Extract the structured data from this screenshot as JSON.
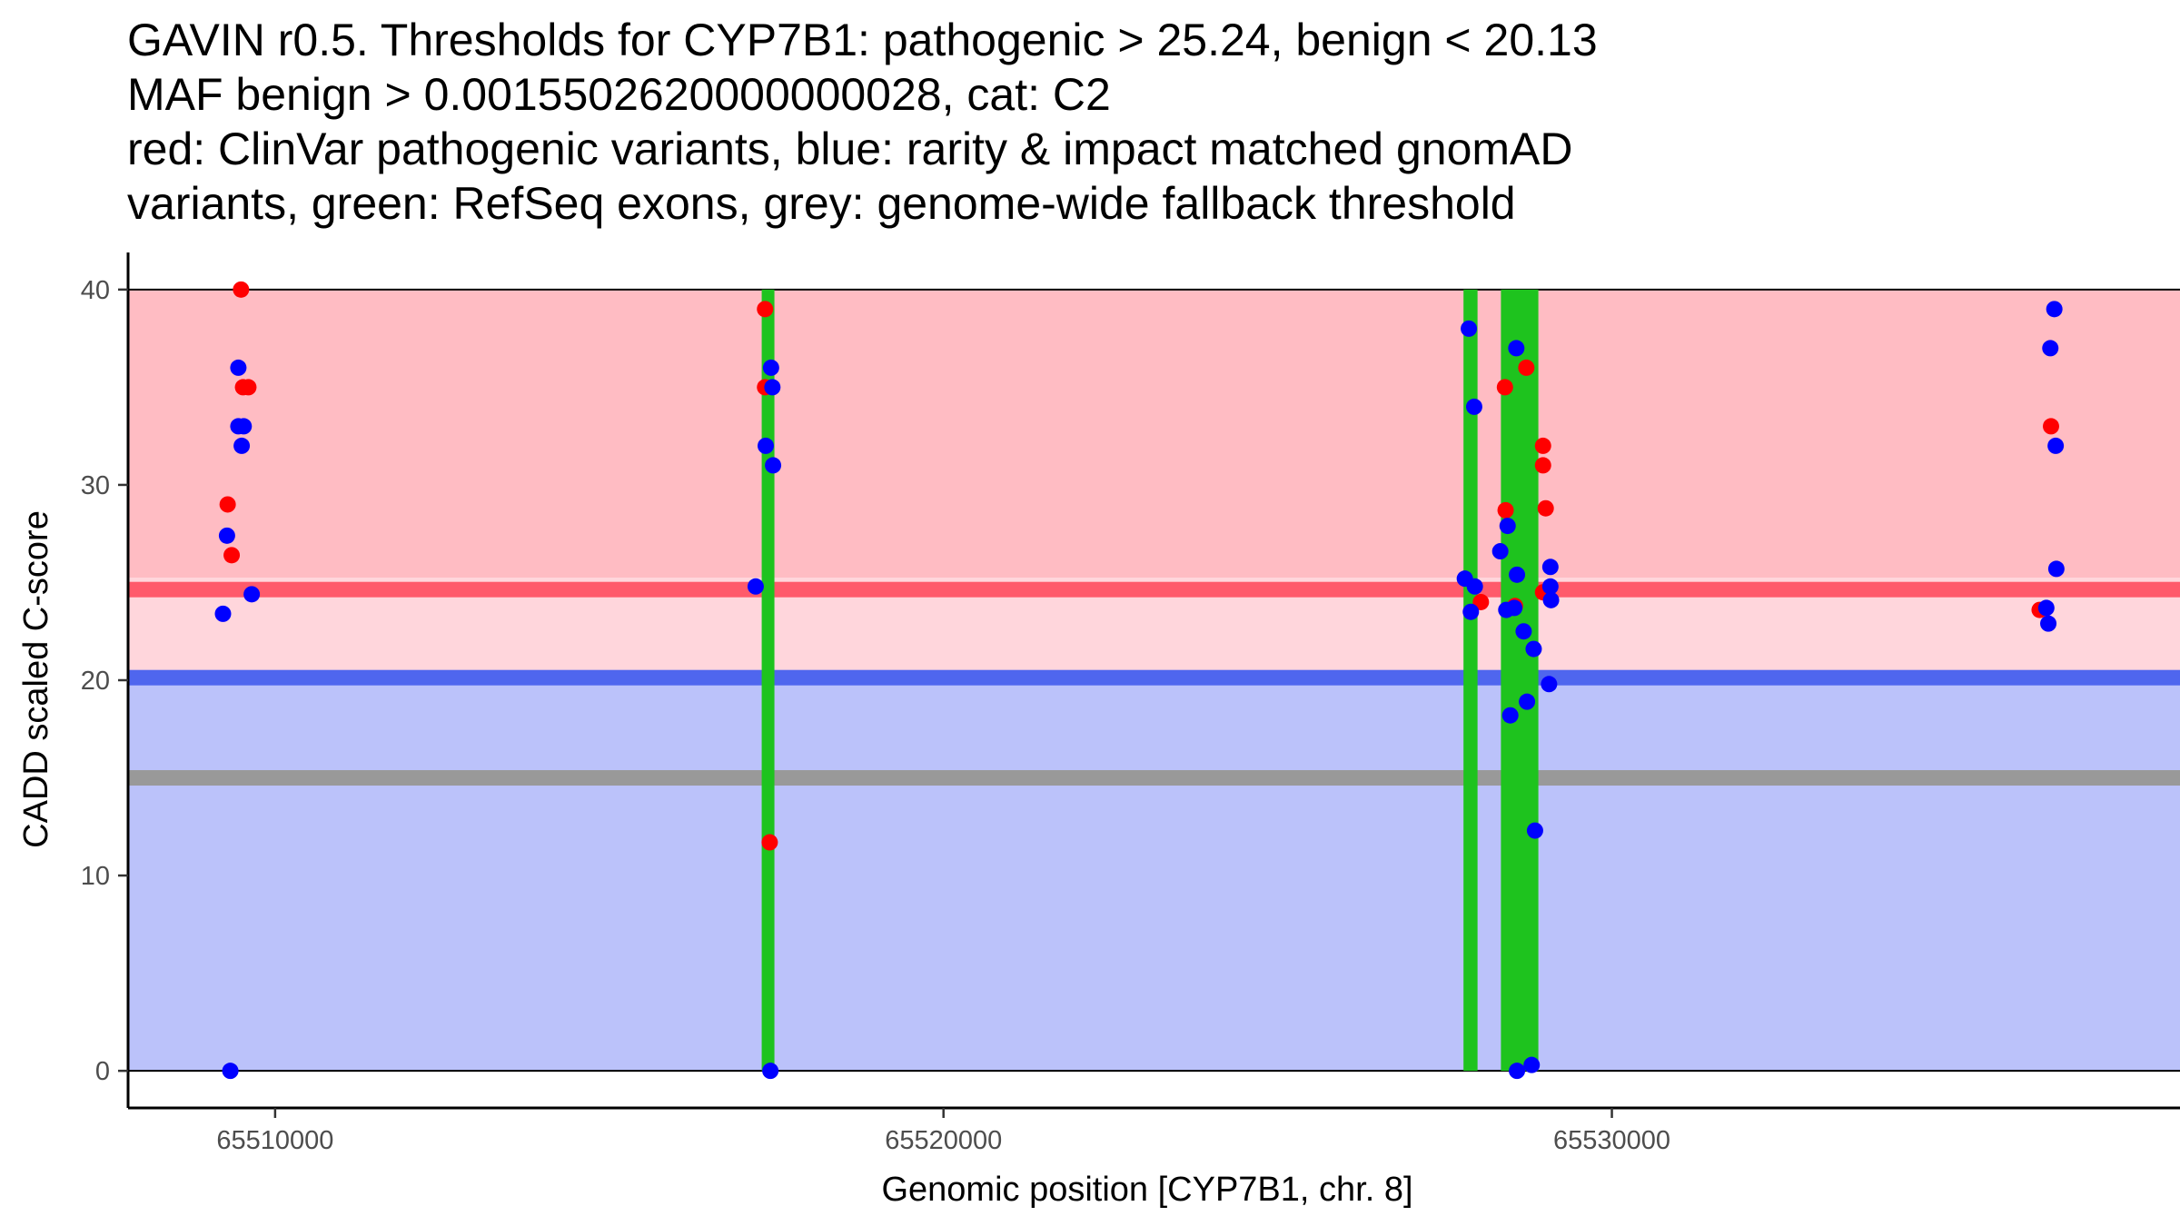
{
  "chart_data": {
    "type": "scatter",
    "title_lines": [
      "GAVIN r0.5. Thresholds for CYP7B1: pathogenic > 25.24, benign < 20.13",
      "MAF benign > 0.00155026200000000​28, cat: C2",
      "red: ClinVar pathogenic variants, blue: rarity & impact matched gnomAD",
      "variants, green: RefSeq exons, grey: genome-wide fallback threshold"
    ],
    "xlabel": "Genomic position [CYP7B1, chr. 8]",
    "ylabel": "CADD scaled C-score",
    "xlim": [
      65507800,
      65538500
    ],
    "ylim": [
      -1.9,
      41.9
    ],
    "x_ticks": [
      65510000,
      65520000,
      65530000
    ],
    "x_tick_labels": [
      "65510000",
      "65520000",
      "65530000"
    ],
    "y_ticks": [
      0,
      10,
      20,
      30,
      40
    ],
    "y_tick_labels": [
      "0",
      "10",
      "20",
      "30",
      "40"
    ],
    "colors": {
      "pathogenic_region": "#ffbcc3",
      "uncertain_region": "#ffd6dc",
      "benign_region": "#bbc2fa",
      "pathogenic_threshold": "#ff5a6b",
      "benign_threshold": "#4f66ee",
      "fallback_threshold": "#999999",
      "exon": "#1ec31e",
      "pathogenic_point": "#ff0000",
      "population_point": "#0000ff"
    },
    "regions": {
      "x_start": 65507800,
      "x_end": 65538500,
      "y_top": 40,
      "y_bottom": 0,
      "pathogenic_threshold": 25.24,
      "benign_threshold": 20.13,
      "fallback_threshold": 15.0
    },
    "exons": [
      {
        "start": 65517280,
        "end": 65517460
      },
      {
        "start": 65527780,
        "end": 65527990
      },
      {
        "start": 65528340,
        "end": 65528900
      }
    ],
    "series": [
      {
        "name": "ClinVar pathogenic variants",
        "points": [
          {
            "x": 65509490,
            "y": 40.0
          },
          {
            "x": 65509600,
            "y": 35.0
          },
          {
            "x": 65509520,
            "y": 35.0
          },
          {
            "x": 65509290,
            "y": 29.0
          },
          {
            "x": 65509350,
            "y": 26.4
          },
          {
            "x": 65517330,
            "y": 39.0
          },
          {
            "x": 65517330,
            "y": 35.0
          },
          {
            "x": 65517400,
            "y": 11.7
          },
          {
            "x": 65528400,
            "y": 35.0
          },
          {
            "x": 65528720,
            "y": 36.0
          },
          {
            "x": 65528410,
            "y": 28.7
          },
          {
            "x": 65528970,
            "y": 32.0
          },
          {
            "x": 65528970,
            "y": 31.0
          },
          {
            "x": 65529010,
            "y": 28.8
          },
          {
            "x": 65528040,
            "y": 24.0
          },
          {
            "x": 65528550,
            "y": 23.8
          },
          {
            "x": 65528970,
            "y": 24.5
          },
          {
            "x": 65536570,
            "y": 33.0
          },
          {
            "x": 65536400,
            "y": 23.6
          }
        ]
      },
      {
        "name": "rarity & impact matched gnomAD variants",
        "points": [
          {
            "x": 65509450,
            "y": 36.0
          },
          {
            "x": 65509450,
            "y": 33.0
          },
          {
            "x": 65509530,
            "y": 33.0
          },
          {
            "x": 65509500,
            "y": 32.0
          },
          {
            "x": 65509280,
            "y": 27.4
          },
          {
            "x": 65509650,
            "y": 24.4
          },
          {
            "x": 65509220,
            "y": 23.4
          },
          {
            "x": 65509330,
            "y": 0.0
          },
          {
            "x": 65517420,
            "y": 36.0
          },
          {
            "x": 65517440,
            "y": 35.0
          },
          {
            "x": 65517340,
            "y": 32.0
          },
          {
            "x": 65517450,
            "y": 31.0
          },
          {
            "x": 65517190,
            "y": 24.8
          },
          {
            "x": 65517410,
            "y": 0.0
          },
          {
            "x": 65527860,
            "y": 38.0
          },
          {
            "x": 65527940,
            "y": 34.0
          },
          {
            "x": 65527800,
            "y": 25.2
          },
          {
            "x": 65527950,
            "y": 24.8
          },
          {
            "x": 65527890,
            "y": 23.5
          },
          {
            "x": 65528570,
            "y": 37.0
          },
          {
            "x": 65528440,
            "y": 27.9
          },
          {
            "x": 65528330,
            "y": 26.6
          },
          {
            "x": 65528580,
            "y": 25.4
          },
          {
            "x": 65529080,
            "y": 25.8
          },
          {
            "x": 65529080,
            "y": 24.8
          },
          {
            "x": 65529090,
            "y": 24.1
          },
          {
            "x": 65528420,
            "y": 23.6
          },
          {
            "x": 65528540,
            "y": 23.7
          },
          {
            "x": 65528680,
            "y": 22.5
          },
          {
            "x": 65528830,
            "y": 21.6
          },
          {
            "x": 65528480,
            "y": 18.2
          },
          {
            "x": 65528730,
            "y": 18.9
          },
          {
            "x": 65529060,
            "y": 19.8
          },
          {
            "x": 65528850,
            "y": 12.3
          },
          {
            "x": 65528580,
            "y": 0.0
          },
          {
            "x": 65528800,
            "y": 0.3
          },
          {
            "x": 65536620,
            "y": 39.0
          },
          {
            "x": 65536560,
            "y": 37.0
          },
          {
            "x": 65536640,
            "y": 32.0
          },
          {
            "x": 65536650,
            "y": 25.7
          },
          {
            "x": 65536500,
            "y": 23.7
          },
          {
            "x": 65536530,
            "y": 22.9
          }
        ]
      }
    ]
  }
}
